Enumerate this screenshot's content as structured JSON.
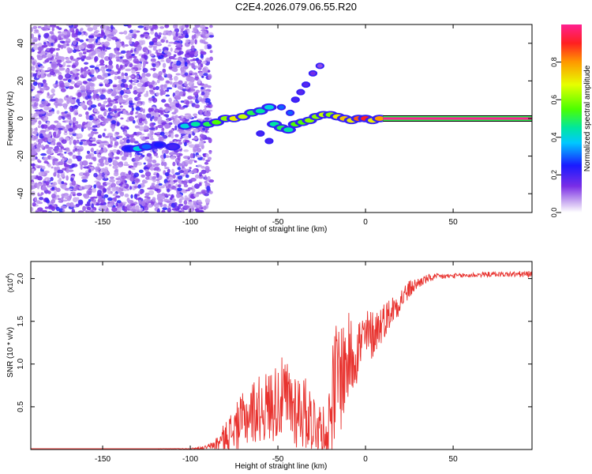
{
  "title": "C2E4.2026.079.06.55.R20",
  "colors": {
    "snr_line": "#e8322e",
    "scatter": "#7a2ee6",
    "background": "#ffffff"
  },
  "chart_data": [
    {
      "type": "heatmap",
      "name": "spectrogram",
      "xlabel": "Height of straight line (km)",
      "ylabel": "Frequency (Hz)",
      "xlim": [
        -191,
        95
      ],
      "ylim": [
        -50,
        50
      ],
      "xticks": [
        -150,
        -100,
        -50,
        0,
        50
      ],
      "xtick_labels": [
        "-150",
        "-100",
        "-50",
        "0",
        "50"
      ],
      "yticks": [
        -40,
        -20,
        0,
        20,
        40
      ],
      "ytick_labels": [
        "-40",
        "-20",
        "0",
        "20",
        "40"
      ],
      "ridge": [
        {
          "x": -135,
          "y": -16,
          "amp": 0.25
        },
        {
          "x": -130,
          "y": -16,
          "amp": 0.4
        },
        {
          "x": -125,
          "y": -15,
          "amp": 0.3
        },
        {
          "x": -118,
          "y": -14,
          "amp": 0.25
        },
        {
          "x": -110,
          "y": -15,
          "amp": 0.2
        },
        {
          "x": -103,
          "y": -4,
          "amp": 0.4
        },
        {
          "x": -97,
          "y": -3,
          "amp": 0.45
        },
        {
          "x": -90,
          "y": -3,
          "amp": 0.5
        },
        {
          "x": -85,
          "y": -2,
          "amp": 0.55
        },
        {
          "x": -80,
          "y": 0,
          "amp": 0.6
        },
        {
          "x": -75,
          "y": 0,
          "amp": 0.7
        },
        {
          "x": -70,
          "y": 1,
          "amp": 0.65
        },
        {
          "x": -65,
          "y": 3,
          "amp": 0.5
        },
        {
          "x": -60,
          "y": 4,
          "amp": 0.45
        },
        {
          "x": -55,
          "y": 6,
          "amp": 0.4
        },
        {
          "x": -52,
          "y": -3,
          "amp": 0.45
        },
        {
          "x": -48,
          "y": -5,
          "amp": 0.5
        },
        {
          "x": -44,
          "y": -6,
          "amp": 0.45
        },
        {
          "x": -40,
          "y": -3,
          "amp": 0.55
        },
        {
          "x": -36,
          "y": -2,
          "amp": 0.55
        },
        {
          "x": -32,
          "y": -1,
          "amp": 0.6
        },
        {
          "x": -28,
          "y": 1,
          "amp": 0.6
        },
        {
          "x": -24,
          "y": 2,
          "amp": 0.65
        },
        {
          "x": -20,
          "y": 2,
          "amp": 0.6
        },
        {
          "x": -16,
          "y": 1,
          "amp": 0.7
        },
        {
          "x": -12,
          "y": 0,
          "amp": 0.75
        },
        {
          "x": -8,
          "y": -1,
          "amp": 0.7
        },
        {
          "x": -4,
          "y": 0,
          "amp": 0.85
        },
        {
          "x": 0,
          "y": 0,
          "amp": 0.9
        },
        {
          "x": 4,
          "y": -1,
          "amp": 0.7
        },
        {
          "x": 8,
          "y": 0,
          "amp": 0.8
        }
      ],
      "branches": [
        {
          "x": -48,
          "y": 6,
          "amp": 0.3
        },
        {
          "x": -43,
          "y": 3,
          "amp": 0.3
        },
        {
          "x": -40,
          "y": 10,
          "amp": 0.2
        },
        {
          "x": -37,
          "y": 14,
          "amp": 0.18
        },
        {
          "x": -34,
          "y": 18,
          "amp": 0.18
        },
        {
          "x": -30,
          "y": 24,
          "amp": 0.15
        },
        {
          "x": -26,
          "y": 28,
          "amp": 0.12
        },
        {
          "x": -55,
          "y": -12,
          "amp": 0.2
        },
        {
          "x": -60,
          "y": -8,
          "amp": 0.2
        }
      ],
      "carrier": {
        "x_start": 10,
        "x_end": 95,
        "y": 0,
        "amp": 1.0
      }
    },
    {
      "type": "colorbar",
      "name": "amplitude-scale",
      "label": "Normalized spectral amplitude",
      "range": [
        0,
        1
      ],
      "ticks": [
        0.0,
        0.2,
        0.4,
        0.6,
        0.8
      ],
      "tick_labels": [
        "0.0",
        "0.2",
        "0.4",
        "0.6",
        "0.8"
      ]
    },
    {
      "type": "line",
      "name": "snr",
      "xlabel": "Height of straight line (km)",
      "ylabel": "SNR (10 * v/v)",
      "y_multiplier": "(x10",
      "y_multiplier_exp": "4",
      "y_multiplier_close": ")",
      "xlim": [
        -191,
        95
      ],
      "ylim": [
        0,
        2.2
      ],
      "xticks": [
        -150,
        -100,
        -50,
        0,
        50
      ],
      "xtick_labels": [
        "-150",
        "-100",
        "-50",
        "0",
        "50"
      ],
      "yticks": [
        0.5,
        1.0,
        1.5,
        2.0
      ],
      "ytick_labels": [
        "0.5",
        "1.0",
        "1.5",
        "2.0"
      ],
      "series": [
        {
          "name": "SNR",
          "x": [
            -191,
            -150,
            -120,
            -100,
            -92,
            -88,
            -84,
            -80,
            -76,
            -72,
            -68,
            -64,
            -60,
            -56,
            -52,
            -48,
            -44,
            -40,
            -36,
            -32,
            -28,
            -24,
            -22,
            -20,
            -18,
            -16,
            -14,
            -12,
            -10,
            -8,
            -6,
            -4,
            -2,
            0,
            4,
            8,
            12,
            16,
            20,
            24,
            28,
            32,
            36,
            40,
            50,
            60,
            70,
            80,
            90,
            95
          ],
          "envelope": [
            0.01,
            0.01,
            0.01,
            0.01,
            0.02,
            0.04,
            0.08,
            0.15,
            0.22,
            0.3,
            0.38,
            0.45,
            0.48,
            0.5,
            0.55,
            0.6,
            0.55,
            0.5,
            0.45,
            0.38,
            0.3,
            0.2,
            0.15,
            0.45,
            0.7,
            0.85,
            0.9,
            0.95,
            1.05,
            1.1,
            1.15,
            1.2,
            1.25,
            1.3,
            1.35,
            1.45,
            1.55,
            1.65,
            1.75,
            1.85,
            1.92,
            1.97,
            2.0,
            2.02,
            2.03,
            2.04,
            2.05,
            2.05,
            2.05,
            2.05
          ],
          "noise_amp": [
            0.0,
            0.0,
            0.0,
            0.005,
            0.02,
            0.05,
            0.1,
            0.18,
            0.25,
            0.3,
            0.35,
            0.38,
            0.4,
            0.42,
            0.45,
            0.48,
            0.5,
            0.5,
            0.45,
            0.4,
            0.35,
            0.3,
            0.3,
            0.55,
            0.7,
            0.75,
            0.7,
            0.6,
            0.55,
            0.5,
            0.45,
            0.4,
            0.38,
            0.35,
            0.3,
            0.25,
            0.2,
            0.18,
            0.15,
            0.12,
            0.08,
            0.06,
            0.05,
            0.04,
            0.03,
            0.03,
            0.03,
            0.03,
            0.04,
            0.04
          ]
        }
      ]
    }
  ]
}
